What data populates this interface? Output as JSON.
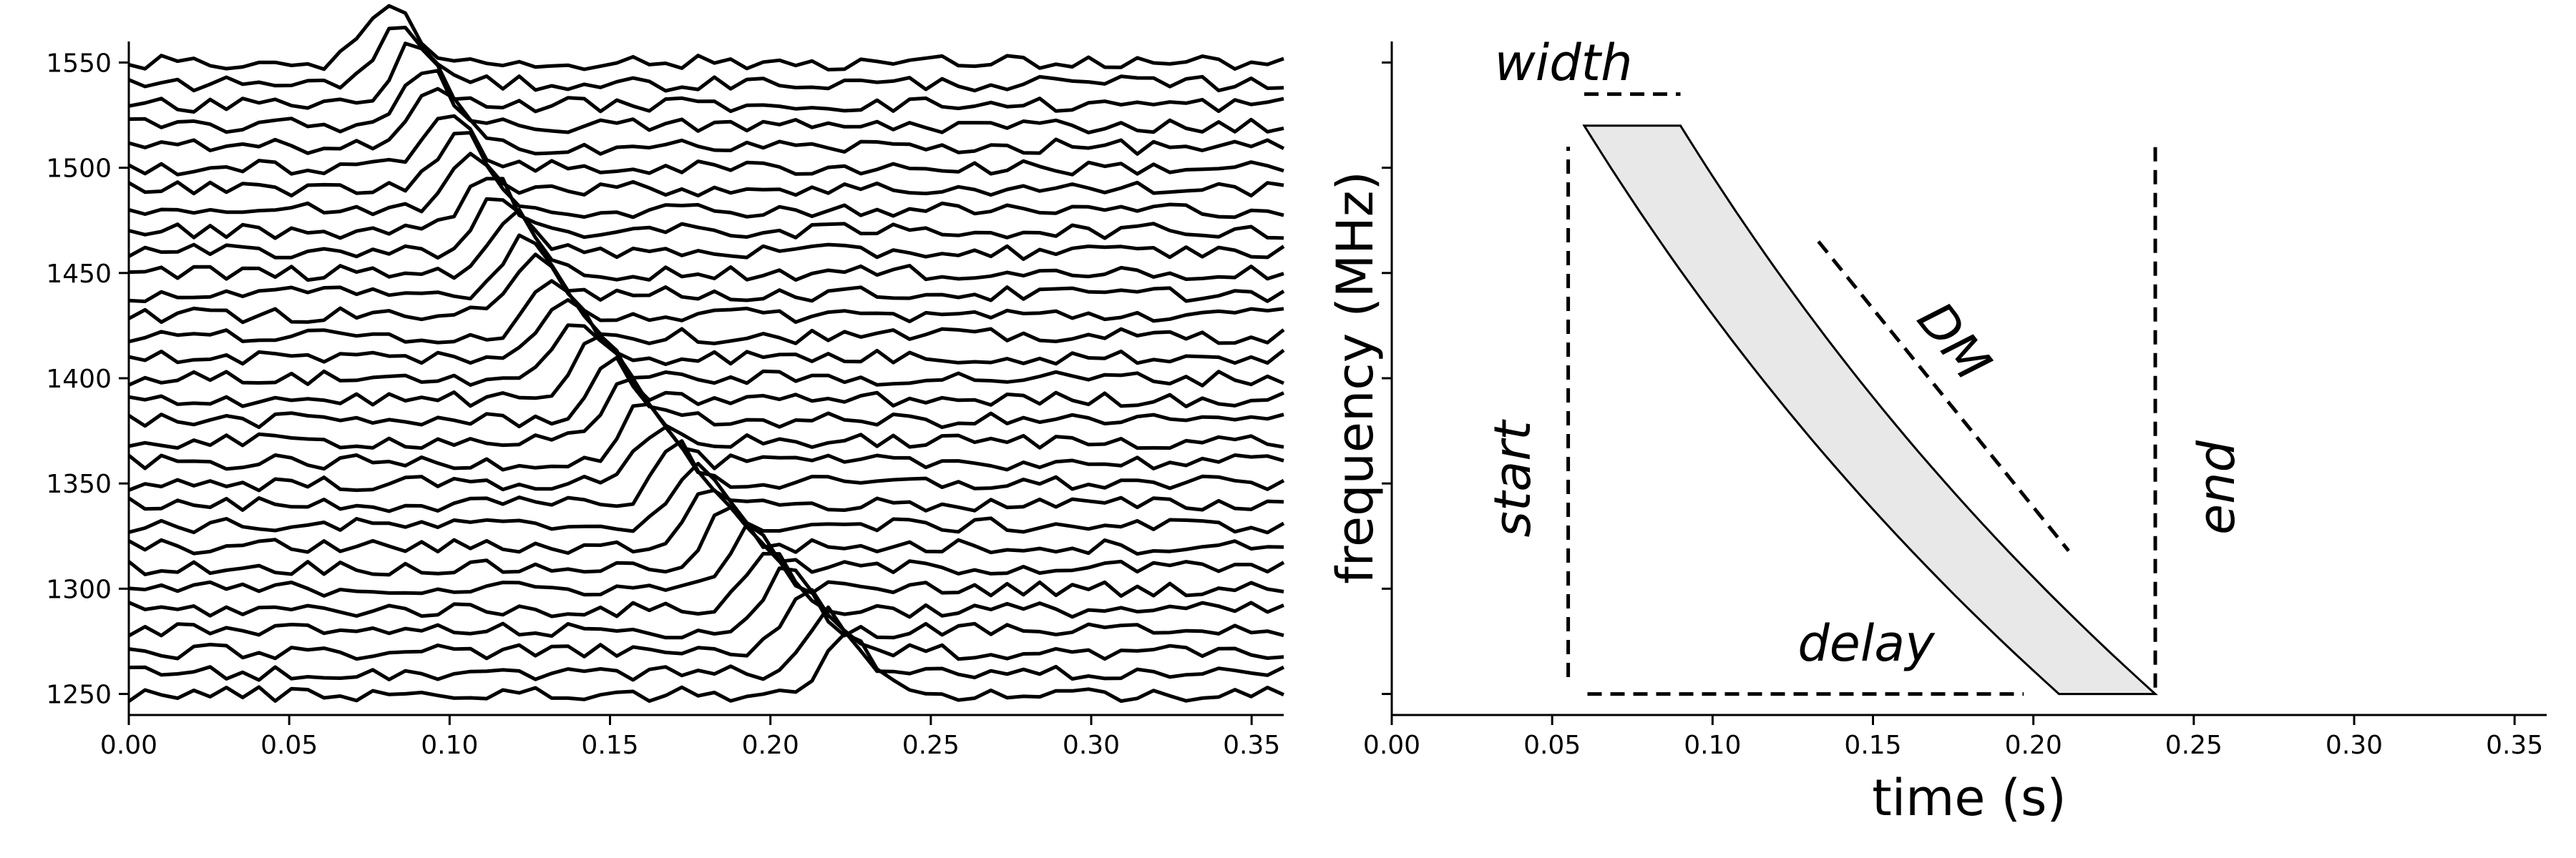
{
  "chart_data": [
    {
      "type": "line",
      "title": "",
      "xlabel": "",
      "ylabel": "",
      "xlim": [
        0,
        0.36
      ],
      "ylim": [
        1240,
        1560
      ],
      "xticks": [
        "0.00",
        "0.05",
        "0.10",
        "0.15",
        "0.20",
        "0.25",
        "0.30",
        "0.35"
      ],
      "yticks": [
        "1250",
        "1300",
        "1350",
        "1400",
        "1450",
        "1500",
        "1550"
      ],
      "channels": {
        "first_mhz": 1250,
        "last_mhz": 1550,
        "count": 31
      },
      "pulse": {
        "arrival_at_top_s": 0.082,
        "arrival_at_bottom_s": 0.224,
        "amplitude_mhz": 28,
        "width_s": 0.007
      },
      "noise_mhz": 3.5,
      "samples_per_trace": 72,
      "grid": false,
      "legend": "none"
    },
    {
      "type": "area",
      "title": "",
      "xlabel": "time (s)",
      "ylabel": "frequency (MHz)",
      "xlim": [
        0,
        0.36
      ],
      "ylim": [
        1240,
        1560
      ],
      "xticks": [
        "0.00",
        "0.05",
        "0.10",
        "0.15",
        "0.20",
        "0.25",
        "0.30",
        "0.35"
      ],
      "yticks_labeled": false,
      "dispersed_band": {
        "top_freq_mhz": 1520,
        "bottom_freq_mhz": 1250,
        "top_left_time_s": 0.06,
        "top_right_time_s": 0.09,
        "bottom_left_time_s": 0.208,
        "bottom_right_time_s": 0.238
      },
      "annotations": [
        {
          "text": "width"
        },
        {
          "text": "start"
        },
        {
          "text": "end"
        },
        {
          "text": "DM"
        },
        {
          "text": "delay"
        }
      ],
      "markers": {
        "width_line": {
          "x": [
            0.06,
            0.09
          ],
          "y": 1535
        },
        "start_line": {
          "x": 0.055,
          "y": [
            1258,
            1510
          ]
        },
        "end_line": {
          "x": 0.238,
          "y": [
            1253,
            1512
          ]
        },
        "delay_line": {
          "x": [
            0.061,
            0.197
          ],
          "y": 1250
        },
        "dm_line": {
          "x": [
            0.133,
            0.211
          ],
          "y": [
            1465,
            1318
          ]
        }
      },
      "grid": false,
      "legend": "none"
    }
  ]
}
